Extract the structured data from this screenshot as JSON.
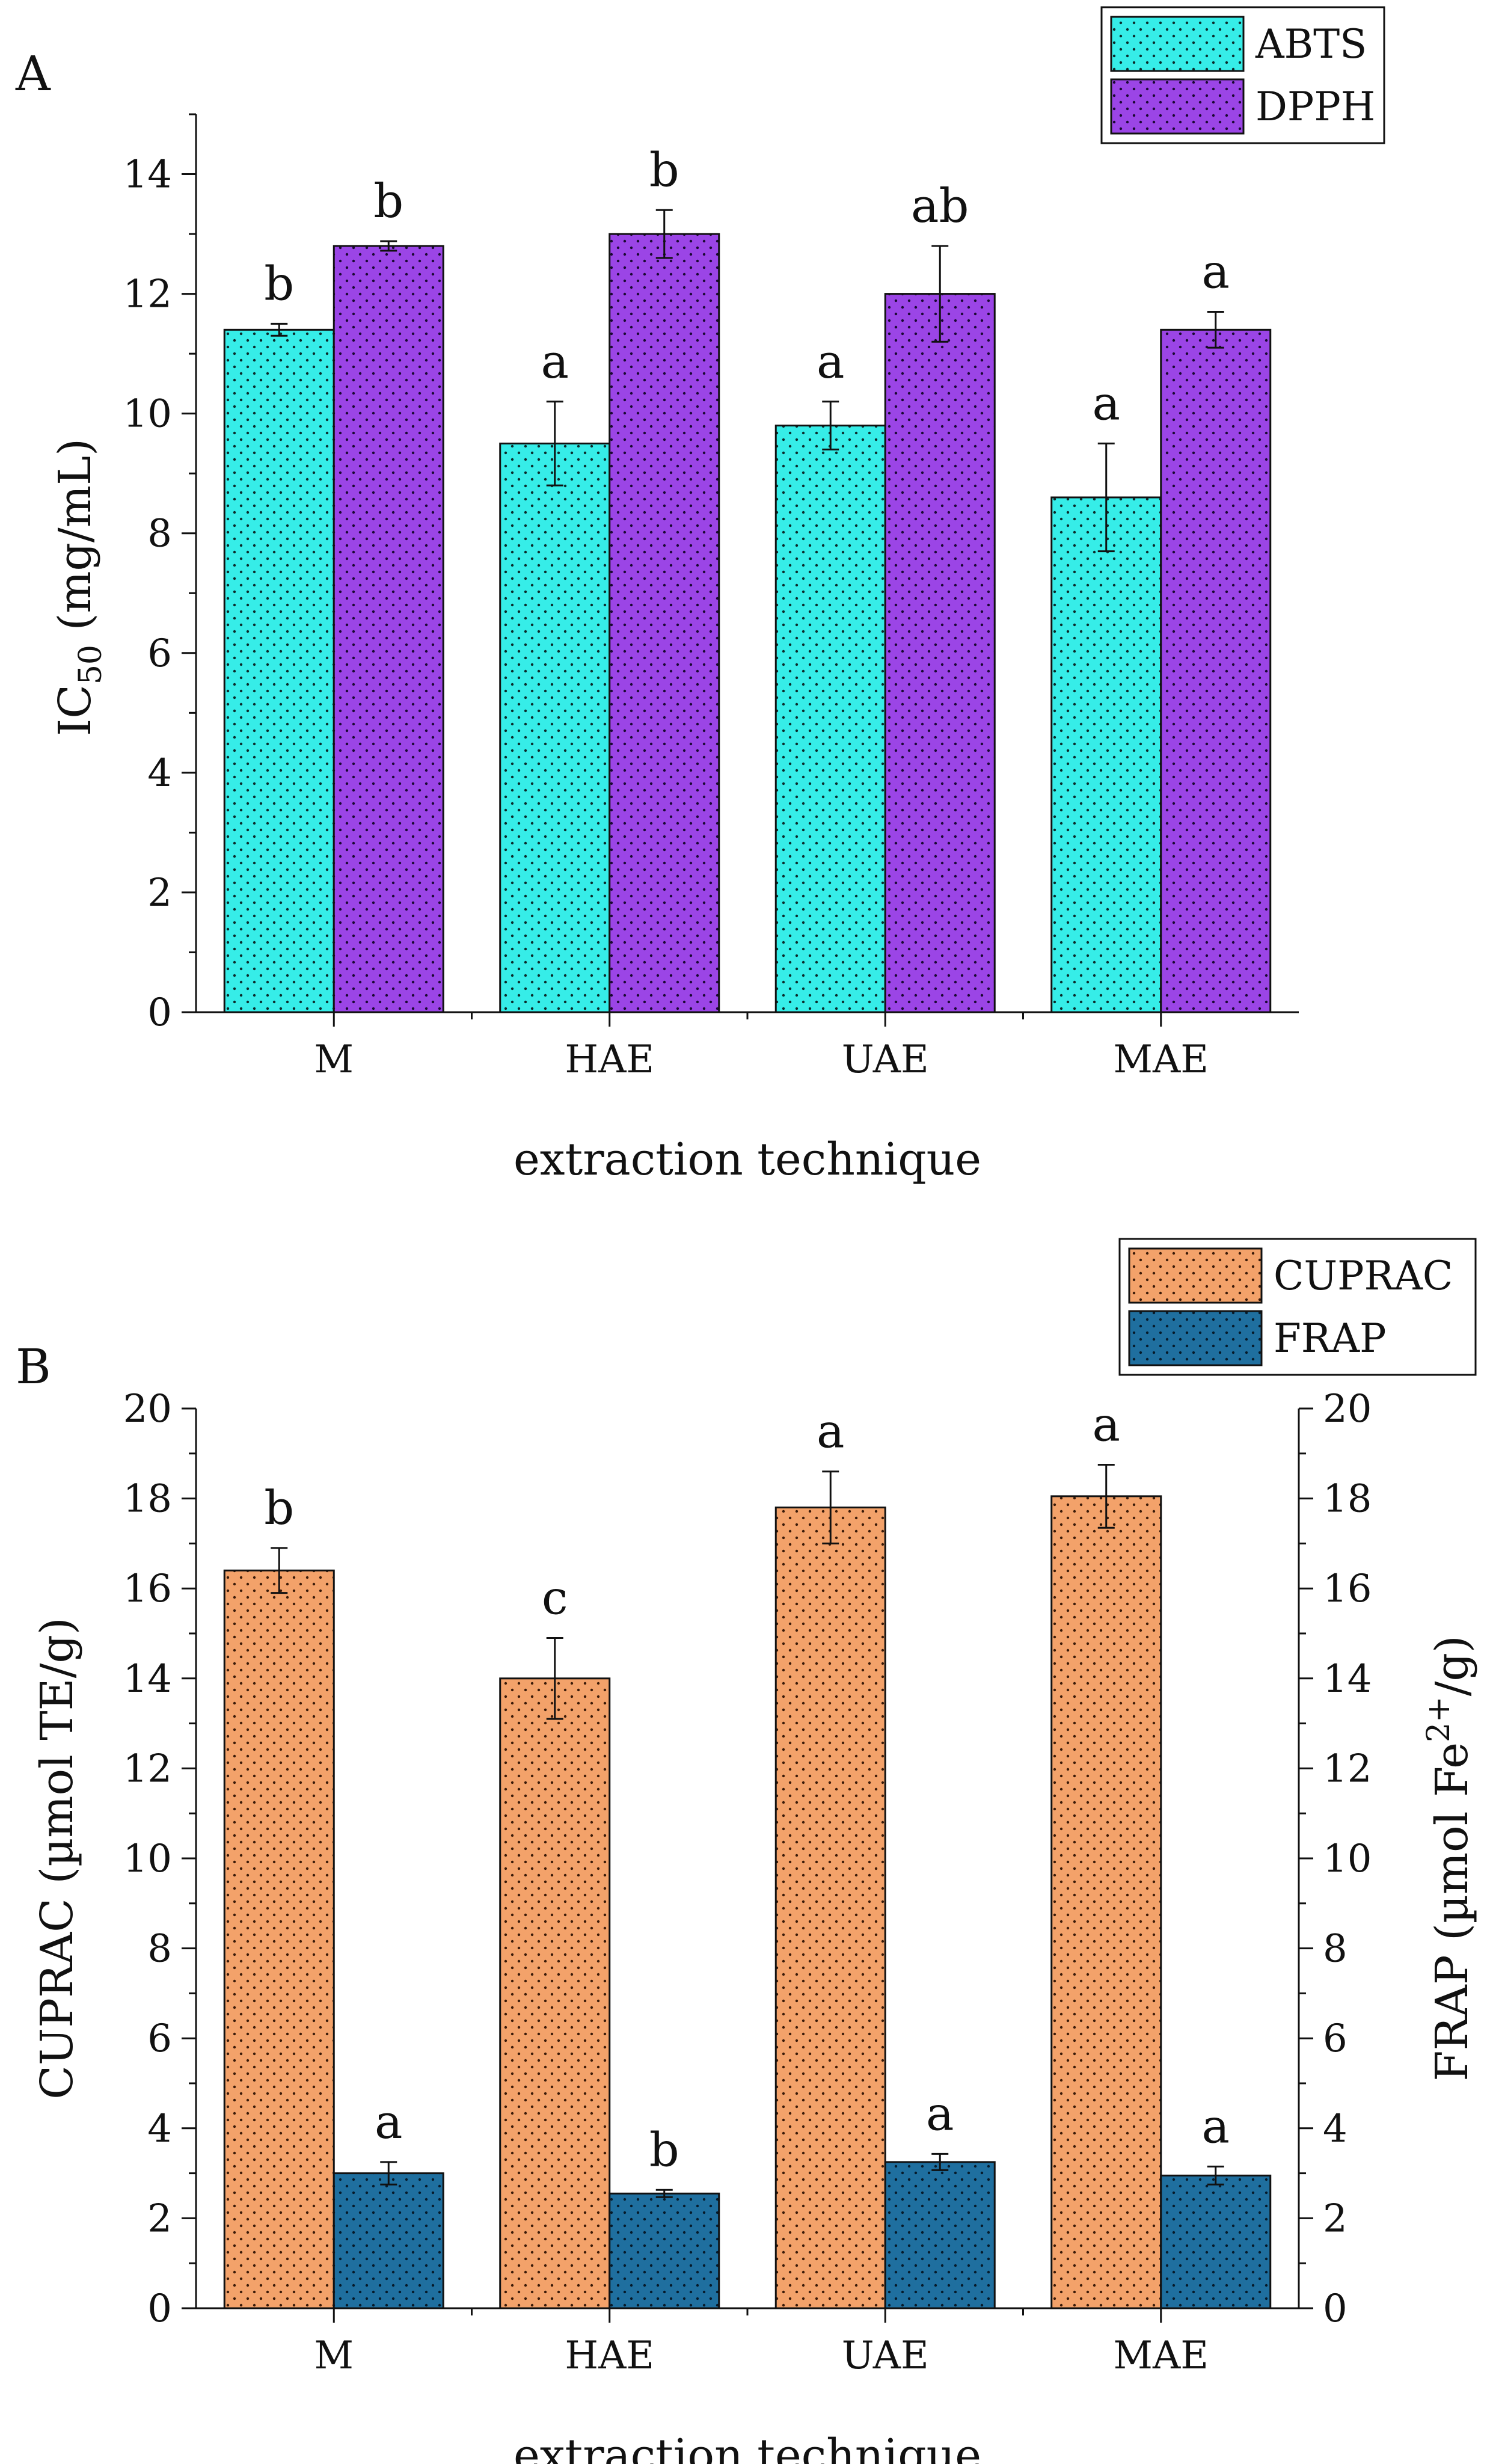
{
  "chart_data": [
    {
      "panel": "A",
      "type": "bar",
      "categories": [
        "M",
        "HAE",
        "UAE",
        "MAE"
      ],
      "xlabel": "extraction technique",
      "ylabel": "IC50 (mg/mL)",
      "ylabel_main": "IC",
      "ylabel_sub": "50",
      "ylabel_unit": " (mg/mL)",
      "ylim": [
        0,
        15
      ],
      "yticks": [
        0,
        2,
        4,
        6,
        8,
        10,
        12,
        14
      ],
      "legend_position": "top-right",
      "series": [
        {
          "name": "ABTS",
          "color": "#36ede8",
          "dot": "#0b2a2a",
          "values": [
            11.4,
            9.5,
            9.8,
            8.6
          ],
          "errors": [
            0.1,
            0.7,
            0.4,
            0.9
          ],
          "letters": [
            "b",
            "a",
            "a",
            "a"
          ]
        },
        {
          "name": "DPPH",
          "color": "#9b45e6",
          "dot": "#1a0833",
          "values": [
            12.8,
            13.0,
            12.0,
            11.4
          ],
          "errors": [
            0.08,
            0.4,
            0.8,
            0.3
          ],
          "letters": [
            "b",
            "b",
            "ab",
            "a"
          ]
        }
      ]
    },
    {
      "panel": "B",
      "type": "bar",
      "categories": [
        "M",
        "HAE",
        "UAE",
        "MAE"
      ],
      "xlabel": "extraction technique",
      "ylabel": "CUPRAC (µmol TE/g)",
      "ylabel_right": "FRAP (µmol Fe2+/g)",
      "ylabel_right_main": "FRAP (µmol Fe",
      "ylabel_right_sup": "2+",
      "ylabel_right_tail": "/g)",
      "ylim": [
        0,
        20
      ],
      "yticks": [
        0,
        2,
        4,
        6,
        8,
        10,
        12,
        14,
        16,
        18,
        20
      ],
      "legend_position": "top-right",
      "series": [
        {
          "name": "CUPRAC",
          "color": "#f3a26a",
          "dot": "#3a1a08",
          "values": [
            16.4,
            14.0,
            17.8,
            18.05
          ],
          "errors": [
            0.5,
            0.9,
            0.8,
            0.7
          ],
          "letters": [
            "b",
            "c",
            "a",
            "a"
          ]
        },
        {
          "name": "FRAP",
          "color": "#1f6f9f",
          "dot": "#061a2a",
          "values": [
            3.0,
            2.55,
            3.25,
            2.95
          ],
          "errors": [
            0.25,
            0.08,
            0.18,
            0.2
          ],
          "letters": [
            "a",
            "b",
            "a",
            "a"
          ]
        }
      ]
    }
  ]
}
